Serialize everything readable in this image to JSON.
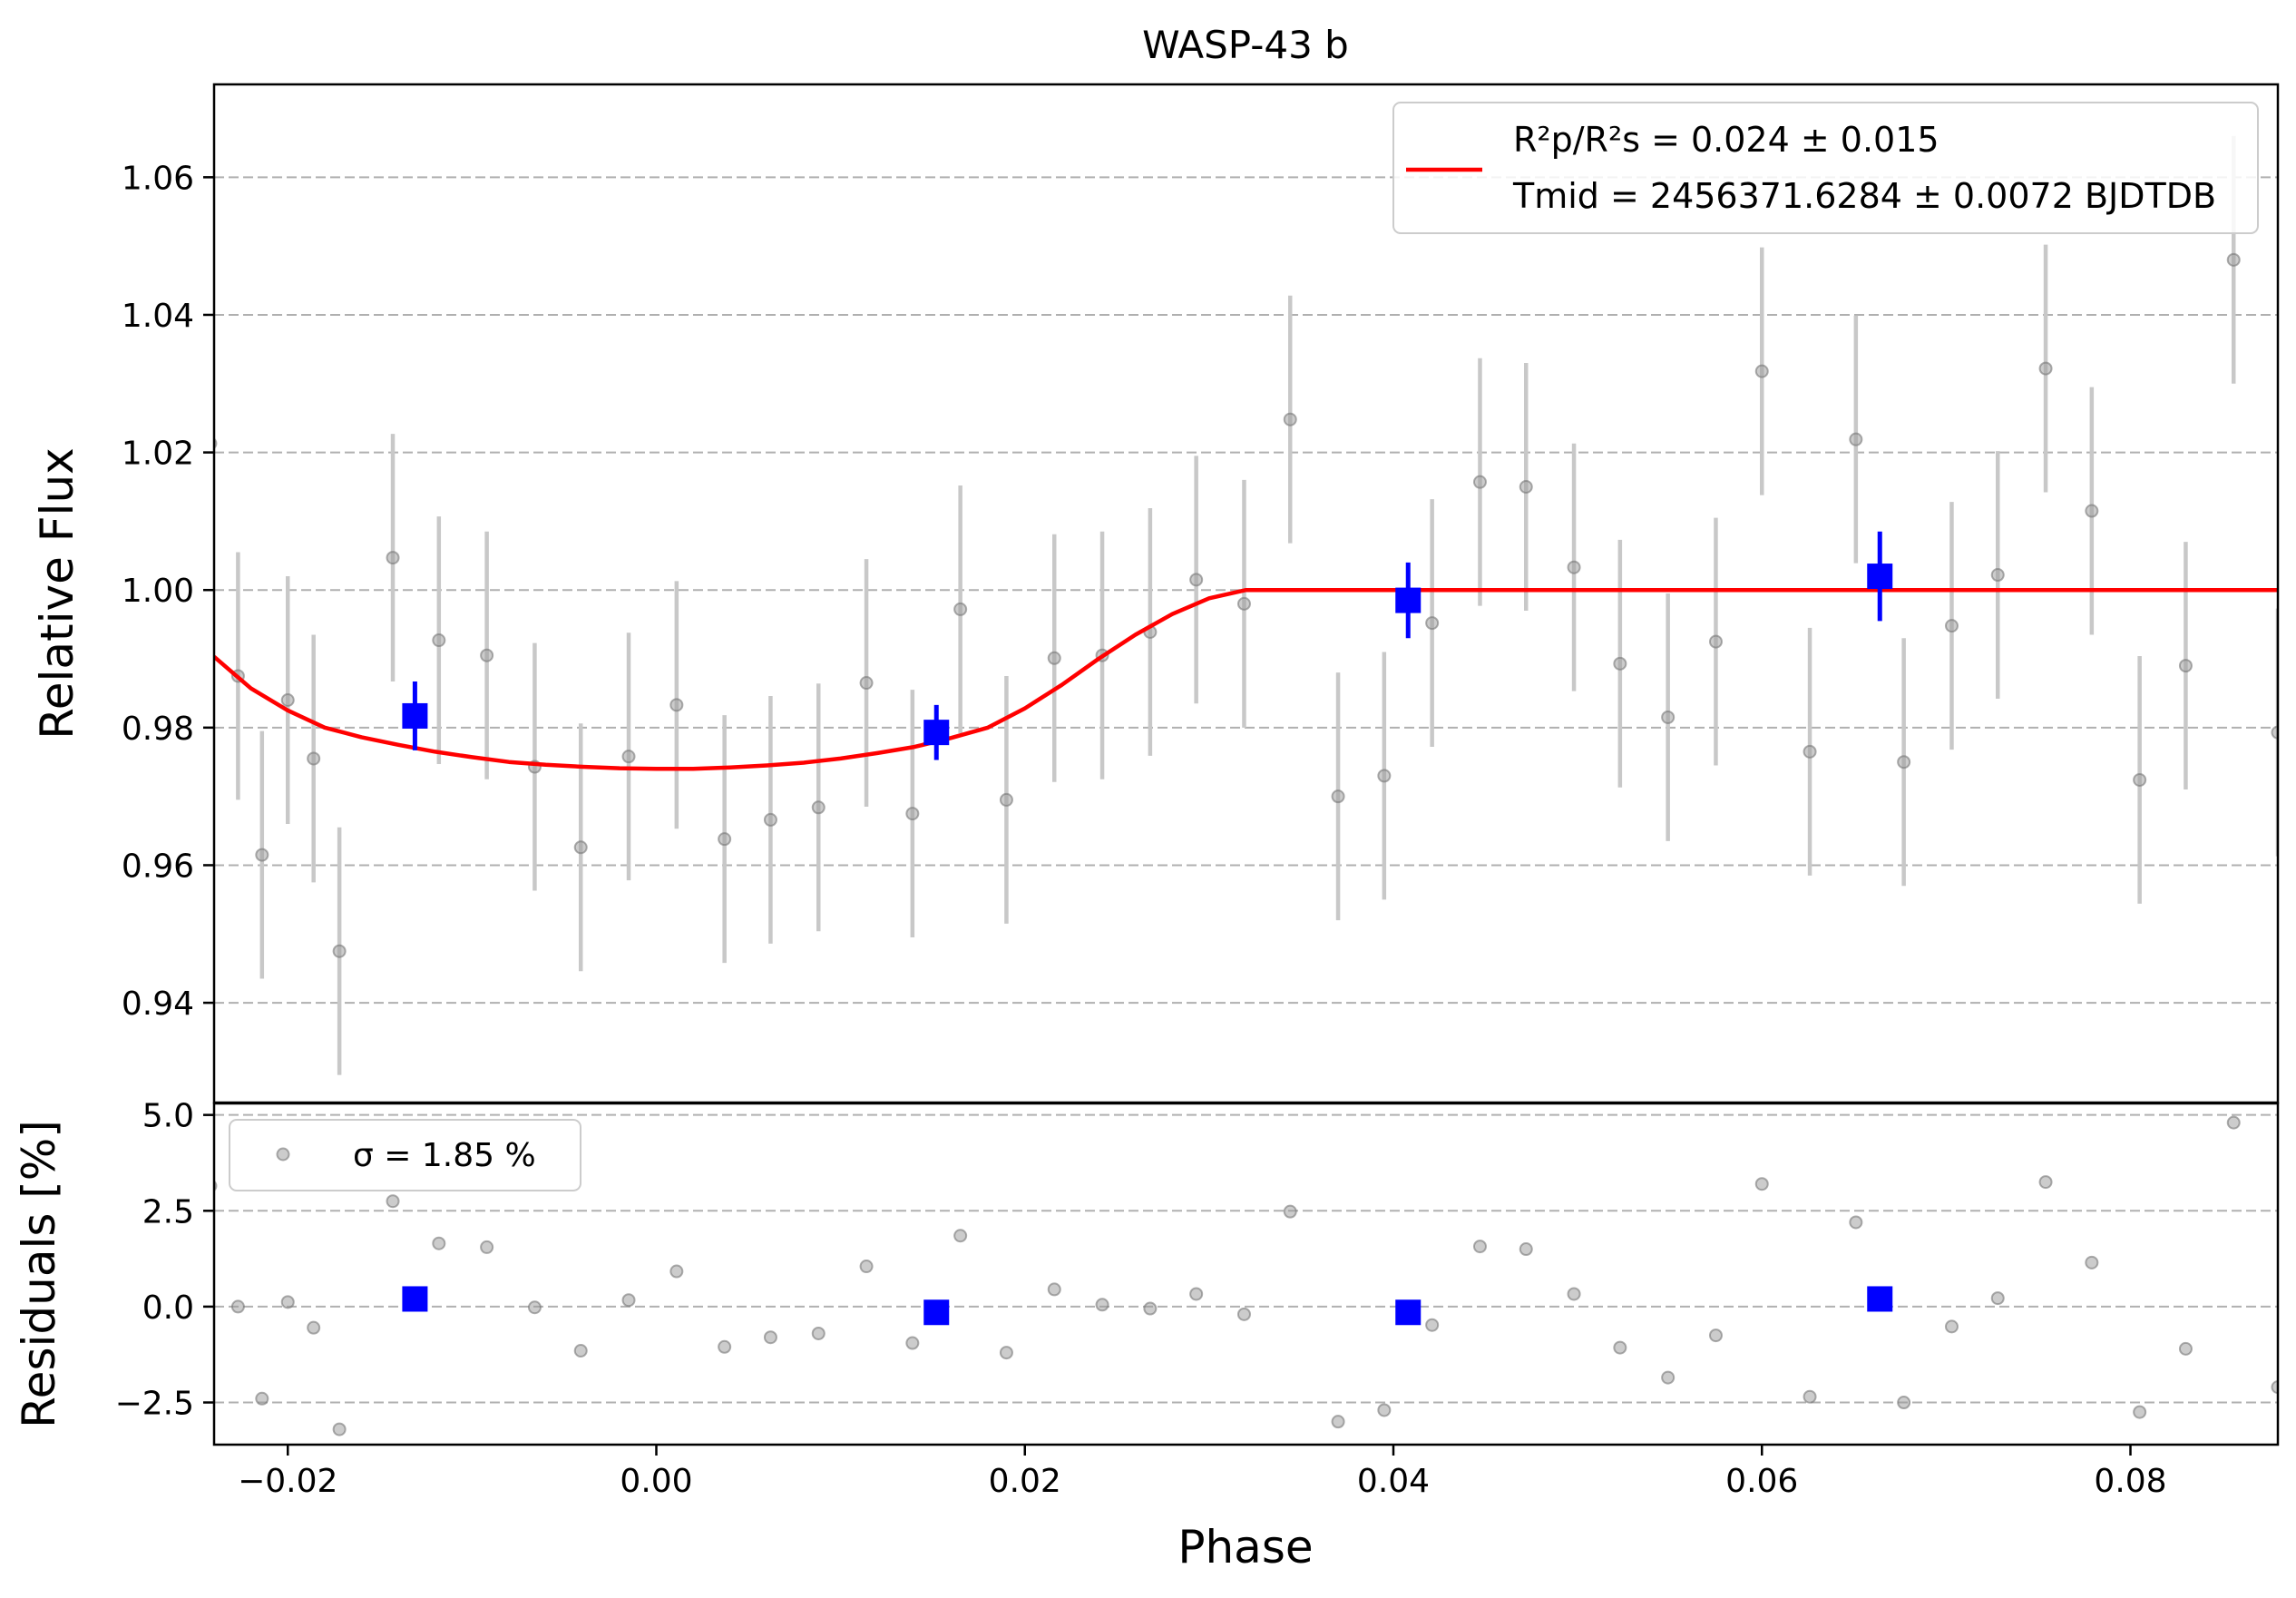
{
  "chart_data": [
    {
      "type": "scatter",
      "title": "WASP-43 b",
      "xlabel": "",
      "ylabel": "Relative Flux",
      "xlim": [
        -0.024,
        0.088
      ],
      "ylim": [
        0.9255,
        1.0735
      ],
      "yticks": [
        0.94,
        0.96,
        0.98,
        1.0,
        1.02,
        1.04,
        1.06
      ],
      "ytick_labels": [
        "0.94",
        "0.96",
        "0.98",
        "1.00",
        "1.02",
        "1.04",
        "1.06"
      ],
      "grid": "horizontal dashed",
      "legend": {
        "placement": "top-right",
        "line1": "R²p/R²s = 0.024 ± 0.015",
        "line2": "Tmid = 2456371.6284 ± 0.0072 BJDTDB"
      },
      "series": [
        {
          "role": "data",
          "color": "#999999",
          "points": [
            {
              "x": -0.0242,
              "y": 1.0213,
              "err": 0.018
            },
            {
              "x": -0.0227,
              "y": 0.9875,
              "err": 0.018
            },
            {
              "x": -0.0214,
              "y": 0.9615,
              "err": 0.018
            },
            {
              "x": -0.02,
              "y": 0.984,
              "err": 0.018
            },
            {
              "x": -0.0186,
              "y": 0.9755,
              "err": 0.018
            },
            {
              "x": -0.0172,
              "y": 0.9475,
              "err": 0.018
            },
            {
              "x": -0.0143,
              "y": 1.0047,
              "err": 0.018
            },
            {
              "x": -0.0118,
              "y": 0.9927,
              "err": 0.018
            },
            {
              "x": -0.0092,
              "y": 0.9905,
              "err": 0.018
            },
            {
              "x": -0.0066,
              "y": 0.9743,
              "err": 0.018
            },
            {
              "x": -0.0041,
              "y": 0.9626,
              "err": 0.018
            },
            {
              "x": -0.0015,
              "y": 0.9758,
              "err": 0.018
            },
            {
              "x": 0.0011,
              "y": 0.9833,
              "err": 0.018
            },
            {
              "x": 0.0037,
              "y": 0.9638,
              "err": 0.018
            },
            {
              "x": 0.0062,
              "y": 0.9666,
              "err": 0.018
            },
            {
              "x": 0.0088,
              "y": 0.9684,
              "err": 0.018
            },
            {
              "x": 0.0114,
              "y": 0.9865,
              "err": 0.018
            },
            {
              "x": 0.0139,
              "y": 0.9675,
              "err": 0.018
            },
            {
              "x": 0.0165,
              "y": 0.9972,
              "err": 0.018
            },
            {
              "x": 0.019,
              "y": 0.9695,
              "err": 0.018
            },
            {
              "x": 0.0216,
              "y": 0.9901,
              "err": 0.018
            },
            {
              "x": 0.0242,
              "y": 0.9905,
              "err": 0.018
            },
            {
              "x": 0.0268,
              "y": 0.9939,
              "err": 0.018
            },
            {
              "x": 0.0293,
              "y": 1.0015,
              "err": 0.018
            },
            {
              "x": 0.0319,
              "y": 0.998,
              "err": 0.018
            },
            {
              "x": 0.0344,
              "y": 1.0248,
              "err": 0.018
            },
            {
              "x": 0.037,
              "y": 0.97,
              "err": 0.018
            },
            {
              "x": 0.0395,
              "y": 0.973,
              "err": 0.018
            },
            {
              "x": 0.0421,
              "y": 0.9952,
              "err": 0.018
            },
            {
              "x": 0.0447,
              "y": 1.0157,
              "err": 0.018
            },
            {
              "x": 0.0472,
              "y": 1.015,
              "err": 0.018
            },
            {
              "x": 0.0498,
              "y": 1.0033,
              "err": 0.018
            },
            {
              "x": 0.0523,
              "y": 0.9893,
              "err": 0.018
            },
            {
              "x": 0.0549,
              "y": 0.9815,
              "err": 0.018
            },
            {
              "x": 0.0575,
              "y": 0.9925,
              "err": 0.018
            },
            {
              "x": 0.06,
              "y": 1.0318,
              "err": 0.018
            },
            {
              "x": 0.0626,
              "y": 0.9765,
              "err": 0.018
            },
            {
              "x": 0.0651,
              "y": 1.0219,
              "err": 0.018
            },
            {
              "x": 0.0677,
              "y": 0.975,
              "err": 0.018
            },
            {
              "x": 0.0703,
              "y": 0.9948,
              "err": 0.018
            },
            {
              "x": 0.0728,
              "y": 1.0022,
              "err": 0.018
            },
            {
              "x": 0.0754,
              "y": 1.0322,
              "err": 0.018
            },
            {
              "x": 0.0779,
              "y": 1.0115,
              "err": 0.018
            },
            {
              "x": 0.0805,
              "y": 0.9724,
              "err": 0.018
            },
            {
              "x": 0.083,
              "y": 0.989,
              "err": 0.018
            },
            {
              "x": 0.0856,
              "y": 1.048,
              "err": 0.018
            },
            {
              "x": 0.088,
              "y": 0.9793,
              "err": 0.018
            }
          ]
        },
        {
          "role": "binned",
          "color": "#0000ff",
          "points": [
            {
              "x": -0.0131,
              "y": 0.9817,
              "err": 0.005
            },
            {
              "x": 0.0152,
              "y": 0.9793,
              "err": 0.004
            },
            {
              "x": 0.0408,
              "y": 0.9985,
              "err": 0.0055
            },
            {
              "x": 0.0664,
              "y": 1.002,
              "err": 0.0065
            }
          ]
        },
        {
          "role": "model",
          "color": "#ff0000",
          "points": [
            {
              "x": -0.024,
              "y": 0.9903
            },
            {
              "x": -0.022,
              "y": 0.9857
            },
            {
              "x": -0.02,
              "y": 0.9825
            },
            {
              "x": -0.018,
              "y": 0.98
            },
            {
              "x": -0.016,
              "y": 0.9786
            },
            {
              "x": -0.014,
              "y": 0.9775
            },
            {
              "x": -0.012,
              "y": 0.9765
            },
            {
              "x": -0.01,
              "y": 0.9757
            },
            {
              "x": -0.008,
              "y": 0.975
            },
            {
              "x": -0.006,
              "y": 0.9746
            },
            {
              "x": -0.004,
              "y": 0.9743
            },
            {
              "x": -0.002,
              "y": 0.9741
            },
            {
              "x": 0.0,
              "y": 0.974
            },
            {
              "x": 0.002,
              "y": 0.974
            },
            {
              "x": 0.004,
              "y": 0.9742
            },
            {
              "x": 0.006,
              "y": 0.9745
            },
            {
              "x": 0.008,
              "y": 0.9749
            },
            {
              "x": 0.01,
              "y": 0.9755
            },
            {
              "x": 0.012,
              "y": 0.9763
            },
            {
              "x": 0.014,
              "y": 0.9772
            },
            {
              "x": 0.016,
              "y": 0.9785
            },
            {
              "x": 0.018,
              "y": 0.98
            },
            {
              "x": 0.02,
              "y": 0.9828
            },
            {
              "x": 0.022,
              "y": 0.9862
            },
            {
              "x": 0.024,
              "y": 0.99
            },
            {
              "x": 0.026,
              "y": 0.9935
            },
            {
              "x": 0.028,
              "y": 0.9965
            },
            {
              "x": 0.03,
              "y": 0.9988
            },
            {
              "x": 0.032,
              "y": 1.0
            },
            {
              "x": 0.04,
              "y": 1.0
            },
            {
              "x": 0.06,
              "y": 1.0
            },
            {
              "x": 0.088,
              "y": 1.0
            }
          ]
        }
      ]
    },
    {
      "type": "scatter",
      "title": "",
      "xlabel": "Phase",
      "ylabel": "Residuals [%]",
      "xlim": [
        -0.024,
        0.088
      ],
      "ylim": [
        -3.6,
        5.3
      ],
      "xticks": [
        -0.02,
        0.0,
        0.02,
        0.04,
        0.06,
        0.08
      ],
      "xtick_labels": [
        "−0.02",
        "0.00",
        "0.02",
        "0.04",
        "0.06",
        "0.08"
      ],
      "yticks": [
        -2.5,
        0.0,
        2.5,
        5.0
      ],
      "ytick_labels": [
        "−2.5",
        "0.0",
        "2.5",
        "5.0"
      ],
      "grid": "horizontal dashed",
      "legend": {
        "placement": "top-left",
        "label": "σ = 1.85 %"
      },
      "series": [
        {
          "role": "residuals",
          "color": "#999999",
          "points": [
            {
              "x": -0.0242,
              "y": 3.15
            },
            {
              "x": -0.0227,
              "y": 0.0
            },
            {
              "x": -0.0214,
              "y": -2.4
            },
            {
              "x": -0.02,
              "y": 0.12
            },
            {
              "x": -0.0186,
              "y": -0.55
            },
            {
              "x": -0.0172,
              "y": -3.2
            },
            {
              "x": -0.0143,
              "y": 2.75
            },
            {
              "x": -0.0118,
              "y": 1.65
            },
            {
              "x": -0.0092,
              "y": 1.55
            },
            {
              "x": -0.0066,
              "y": -0.02
            },
            {
              "x": -0.0041,
              "y": -1.15
            },
            {
              "x": -0.0015,
              "y": 0.17
            },
            {
              "x": 0.0011,
              "y": 0.92
            },
            {
              "x": 0.0037,
              "y": -1.05
            },
            {
              "x": 0.0062,
              "y": -0.8
            },
            {
              "x": 0.0088,
              "y": -0.7
            },
            {
              "x": 0.0114,
              "y": 1.05
            },
            {
              "x": 0.0139,
              "y": -0.95
            },
            {
              "x": 0.0165,
              "y": 1.85
            },
            {
              "x": 0.019,
              "y": -1.2
            },
            {
              "x": 0.0216,
              "y": 0.45
            },
            {
              "x": 0.0242,
              "y": 0.05
            },
            {
              "x": 0.0268,
              "y": -0.05
            },
            {
              "x": 0.0293,
              "y": 0.33
            },
            {
              "x": 0.0319,
              "y": -0.2
            },
            {
              "x": 0.0344,
              "y": 2.48
            },
            {
              "x": 0.037,
              "y": -3.0
            },
            {
              "x": 0.0395,
              "y": -2.7
            },
            {
              "x": 0.0421,
              "y": -0.48
            },
            {
              "x": 0.0447,
              "y": 1.57
            },
            {
              "x": 0.0472,
              "y": 1.5
            },
            {
              "x": 0.0498,
              "y": 0.33
            },
            {
              "x": 0.0523,
              "y": -1.07
            },
            {
              "x": 0.0549,
              "y": -1.85
            },
            {
              "x": 0.0575,
              "y": -0.75
            },
            {
              "x": 0.06,
              "y": 3.2
            },
            {
              "x": 0.0626,
              "y": -2.35
            },
            {
              "x": 0.0651,
              "y": 2.2
            },
            {
              "x": 0.0677,
              "y": -2.5
            },
            {
              "x": 0.0703,
              "y": -0.52
            },
            {
              "x": 0.0728,
              "y": 0.22
            },
            {
              "x": 0.0754,
              "y": 3.25
            },
            {
              "x": 0.0779,
              "y": 1.15
            },
            {
              "x": 0.0805,
              "y": -2.75
            },
            {
              "x": 0.083,
              "y": -1.1
            },
            {
              "x": 0.0856,
              "y": 4.8
            },
            {
              "x": 0.088,
              "y": -2.1
            }
          ]
        },
        {
          "role": "binned",
          "color": "#0000ff",
          "points": [
            {
              "x": -0.0131,
              "y": 0.2
            },
            {
              "x": 0.0152,
              "y": -0.15
            },
            {
              "x": 0.0408,
              "y": -0.15
            },
            {
              "x": 0.0664,
              "y": 0.2
            }
          ]
        }
      ]
    }
  ]
}
